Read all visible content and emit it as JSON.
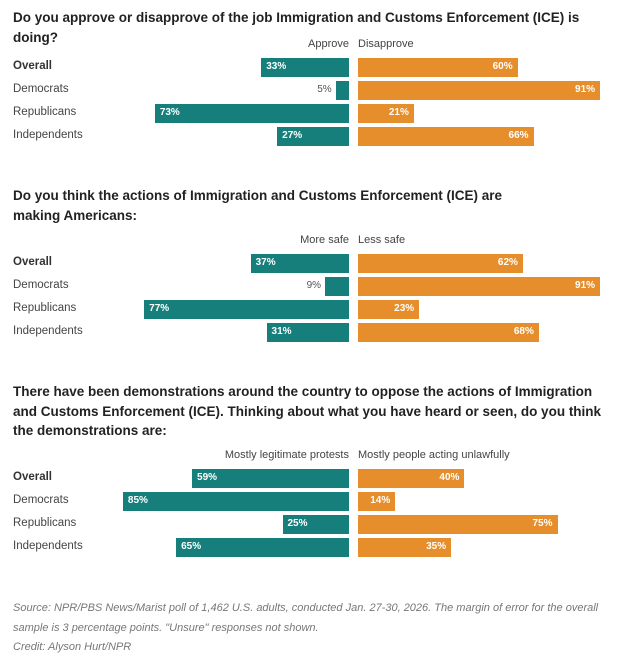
{
  "chart_data": [
    {
      "type": "bar",
      "title": "Do you approve or disapprove of the job Immigration and Customs Enforcement (ICE) is doing?",
      "categories": [
        "Overall",
        "Democrats",
        "Republicans",
        "Independents"
      ],
      "series": [
        {
          "name": "Approve",
          "values": [
            33,
            5,
            73,
            27
          ],
          "color": "#177f7b"
        },
        {
          "name": "Disapprove",
          "values": [
            60,
            91,
            21,
            66
          ],
          "color": "#e68e2c"
        }
      ]
    },
    {
      "type": "bar",
      "title": "Do you think the actions of Immigration and Customs Enforcement (ICE) are making Americans:",
      "categories": [
        "Overall",
        "Democrats",
        "Republicans",
        "Independents"
      ],
      "series": [
        {
          "name": "More safe",
          "values": [
            37,
            9,
            77,
            31
          ],
          "color": "#177f7b"
        },
        {
          "name": "Less safe",
          "values": [
            62,
            91,
            23,
            68
          ],
          "color": "#e68e2c"
        }
      ]
    },
    {
      "type": "bar",
      "title": "There have been demonstrations around the country to oppose the actions of Immigration and Customs Enforcement (ICE). Thinking about what you have heard or seen, do you think the demonstrations are:",
      "categories": [
        "Overall",
        "Democrats",
        "Republicans",
        "Independents"
      ],
      "series": [
        {
          "name": "Mostly legitimate protests",
          "values": [
            59,
            85,
            25,
            65
          ],
          "color": "#177f7b"
        },
        {
          "name": "Mostly people acting unlawfully",
          "values": [
            40,
            14,
            75,
            35
          ],
          "color": "#e68e2c"
        }
      ]
    }
  ],
  "footer": {
    "source": "Source: NPR/PBS News/Marist poll of 1,462 U.S. adults, conducted Jan. 27-30, 2026. The margin of error for the overall sample is 3 percentage points. \"Unsure\" responses not shown.",
    "credit": "Credit: Alyson Hurt/NPR"
  }
}
